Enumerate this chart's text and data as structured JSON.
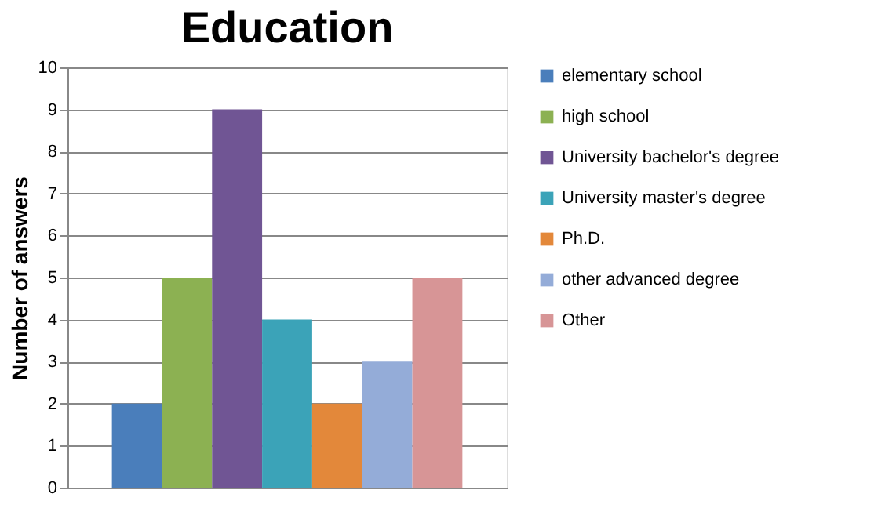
{
  "chart_data": {
    "type": "bar",
    "title": "Education",
    "ylabel": "Number of answers",
    "categories": [
      null
    ],
    "series": [
      {
        "name": "elementary school",
        "color": "#4a7ebb",
        "values": [
          2
        ]
      },
      {
        "name": "high school",
        "color": "#8cb152",
        "values": [
          5
        ]
      },
      {
        "name": "University bachelor's degree",
        "color": "#705594",
        "values": [
          9
        ]
      },
      {
        "name": "University master's degree",
        "color": "#3ba3b8",
        "values": [
          4
        ]
      },
      {
        "name": "Ph.D.",
        "color": "#e3883a",
        "values": [
          2
        ]
      },
      {
        "name": "other advanced degree",
        "color": "#94acd8",
        "values": [
          3
        ]
      },
      {
        "name": "Other",
        "color": "#d79596",
        "values": [
          5
        ]
      }
    ],
    "ylim": [
      0,
      10
    ],
    "yticks": [
      0,
      1,
      2,
      3,
      4,
      5,
      6,
      7,
      8,
      9,
      10
    ],
    "grid": "y",
    "legend": "right",
    "tick_labels": "y"
  }
}
